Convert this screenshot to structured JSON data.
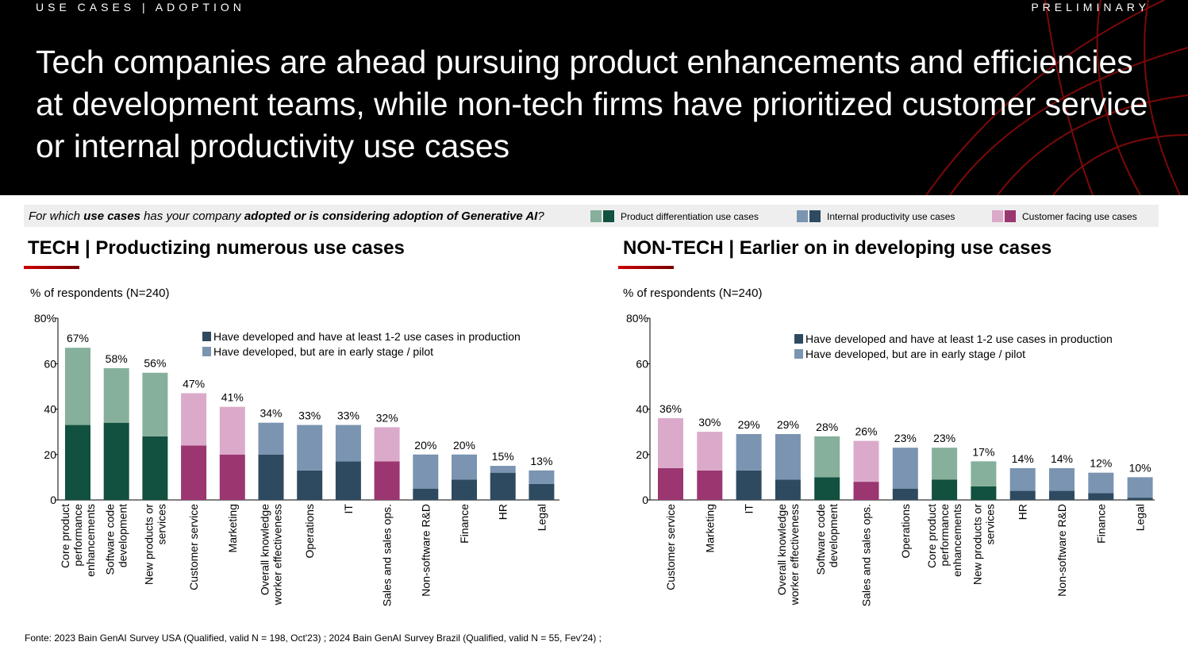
{
  "header": {
    "section": "USE CASES | ADOPTION",
    "status": "PRELIMINARY",
    "title": "Tech companies are ahead pursuing product enhancements and efficiencies at development teams, while non-tech firms have prioritized customer service or internal productivity use cases"
  },
  "question": {
    "p1": "For which ",
    "b1": "use cases",
    "p2": " has your company ",
    "b2": "adopted or is considering adoption of Generative AI",
    "p3": "?"
  },
  "category_legend": [
    {
      "label": "Product differentiation use cases",
      "light": "#86b09b",
      "dark": "#12503f"
    },
    {
      "label": "Internal productivity use cases",
      "light": "#7a94b1",
      "dark": "#2e4a60"
    },
    {
      "label": "Customer facing use cases",
      "light": "#dbaaca",
      "dark": "#9b3671"
    }
  ],
  "colors": {
    "accent_red": "#cc0000",
    "product_light": "#86b09b",
    "product_dark": "#12503f",
    "internal_light": "#7a94b1",
    "internal_dark": "#2e4a60",
    "customer_light": "#dbaaca",
    "customer_dark": "#9b3671",
    "legend_dark": "#2e4a60",
    "legend_light": "#7a94b1"
  },
  "panels": {
    "tech": {
      "title": "TECH | Productizing numerous use cases",
      "subtitle": "% of respondents (N=240)"
    },
    "nontech": {
      "title": "NON-TECH | Earlier on in developing use cases",
      "subtitle": "% of respondents (N=240)"
    }
  },
  "chart_data": [
    {
      "type": "bar",
      "stacked": true,
      "ylim": [
        0,
        80
      ],
      "yticks": [
        "0",
        "20",
        "40",
        "60",
        "80%"
      ],
      "legend_position": "top-right",
      "series": [
        {
          "name": "Have developed and have at least 1-2 use cases in production",
          "values": [
            33,
            34,
            28,
            24,
            20,
            20,
            13,
            17,
            17,
            5,
            9,
            12,
            7
          ]
        },
        {
          "name": "Have developed, but are in early stage / pilot",
          "values": [
            34,
            24,
            28,
            23,
            21,
            14,
            20,
            16,
            15,
            15,
            11,
            3,
            6
          ]
        }
      ],
      "totals": [
        "67%",
        "58%",
        "56%",
        "47%",
        "41%",
        "34%",
        "33%",
        "33%",
        "32%",
        "20%",
        "20%",
        "15%",
        "13%"
      ],
      "categories": [
        [
          "Core product",
          "performance",
          "enhancements"
        ],
        [
          "Software code",
          "development"
        ],
        [
          "New products or",
          "services"
        ],
        [
          "Customer service"
        ],
        [
          "Marketing"
        ],
        [
          "Overall knowledge",
          "worker effectiveness"
        ],
        [
          "Operations"
        ],
        [
          "IT"
        ],
        [
          "Sales and sales ops."
        ],
        [
          "Non-software R&D"
        ],
        [
          "Finance"
        ],
        [
          "HR"
        ],
        [
          "Legal"
        ]
      ],
      "groups": [
        "product",
        "product",
        "product",
        "customer",
        "customer",
        "internal",
        "internal",
        "internal",
        "customer",
        "internal",
        "internal",
        "internal",
        "internal"
      ]
    },
    {
      "type": "bar",
      "stacked": true,
      "ylim": [
        0,
        80
      ],
      "yticks": [
        "0",
        "20",
        "40",
        "60",
        "80%"
      ],
      "legend_position": "top-right",
      "series": [
        {
          "name": "Have developed and have at least 1-2 use cases in production",
          "values": [
            14,
            13,
            13,
            9,
            10,
            8,
            5,
            9,
            6,
            4,
            4,
            3,
            1
          ]
        },
        {
          "name": "Have developed, but are in early stage / pilot",
          "values": [
            22,
            17,
            16,
            20,
            18,
            18,
            18,
            14,
            11,
            10,
            10,
            9,
            9
          ]
        }
      ],
      "totals": [
        "36%",
        "30%",
        "29%",
        "29%",
        "28%",
        "26%",
        "23%",
        "23%",
        "17%",
        "14%",
        "14%",
        "12%",
        "10%"
      ],
      "categories": [
        [
          "Customer service"
        ],
        [
          "Marketing"
        ],
        [
          "IT"
        ],
        [
          "Overall knowledge",
          "worker effectiveness"
        ],
        [
          "Software code",
          "development"
        ],
        [
          "Sales and sales ops."
        ],
        [
          "Operations"
        ],
        [
          "Core product",
          "performance",
          "enhancements"
        ],
        [
          "New products or",
          "services"
        ],
        [
          "HR"
        ],
        [
          "Non-software R&D"
        ],
        [
          "Finance"
        ],
        [
          "Legal"
        ]
      ],
      "groups": [
        "customer",
        "customer",
        "internal",
        "internal",
        "product",
        "customer",
        "internal",
        "product",
        "product",
        "internal",
        "internal",
        "internal",
        "internal"
      ]
    }
  ],
  "footnote": "Fonte: 2023 Bain GenAI Survey USA (Qualified, valid N = 198, Oct'23) ; 2024 Bain GenAI Survey Brazil (Qualified, valid N = 55, Fev'24) ;"
}
